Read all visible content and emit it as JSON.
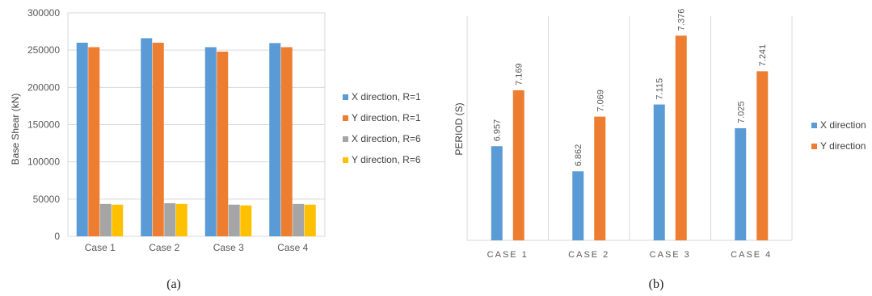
{
  "panels": {
    "a_label": "(a)",
    "b_label": "(b)"
  },
  "chart_data": [
    {
      "type": "bar",
      "ylabel": "Base Shear (kN)",
      "ylim": [
        0,
        300000
      ],
      "yticks": [
        0,
        50000,
        100000,
        150000,
        200000,
        250000,
        300000
      ],
      "categories": [
        "Case 1",
        "Case 2",
        "Case 3",
        "Case 4"
      ],
      "grid": true,
      "legend_position": "right",
      "series": [
        {
          "name": "X direction, R=1",
          "color": "#5B9BD5",
          "values": [
            260000,
            266000,
            254000,
            259500
          ]
        },
        {
          "name": "Y direction, R=1",
          "color": "#ED7D31",
          "values": [
            254000,
            260000,
            248000,
            254000
          ]
        },
        {
          "name": "X direction, R=6",
          "color": "#A5A5A5",
          "values": [
            43500,
            44500,
            42500,
            43500
          ]
        },
        {
          "name": "Y direction, R=6",
          "color": "#FFC000",
          "values": [
            42500,
            43500,
            41500,
            42500
          ]
        }
      ]
    },
    {
      "type": "bar",
      "ylabel": "PERIOD (S)",
      "ylim": [
        6.6,
        7.45
      ],
      "categories": [
        "CASE 1",
        "CASE 2",
        "CASE 3",
        "CASE 4"
      ],
      "grid": false,
      "legend_position": "right",
      "series": [
        {
          "name": "X direction",
          "color": "#5B9BD5",
          "values": [
            6.957,
            6.862,
            7.115,
            7.025
          ],
          "labels": [
            "6.957",
            "6.862",
            "7.115",
            "7.025"
          ]
        },
        {
          "name": "Y direction",
          "color": "#ED7D31",
          "values": [
            7.169,
            7.069,
            7.376,
            7.241
          ],
          "labels": [
            "7.169",
            "7.069",
            "7.376",
            "7.241"
          ]
        }
      ]
    }
  ]
}
